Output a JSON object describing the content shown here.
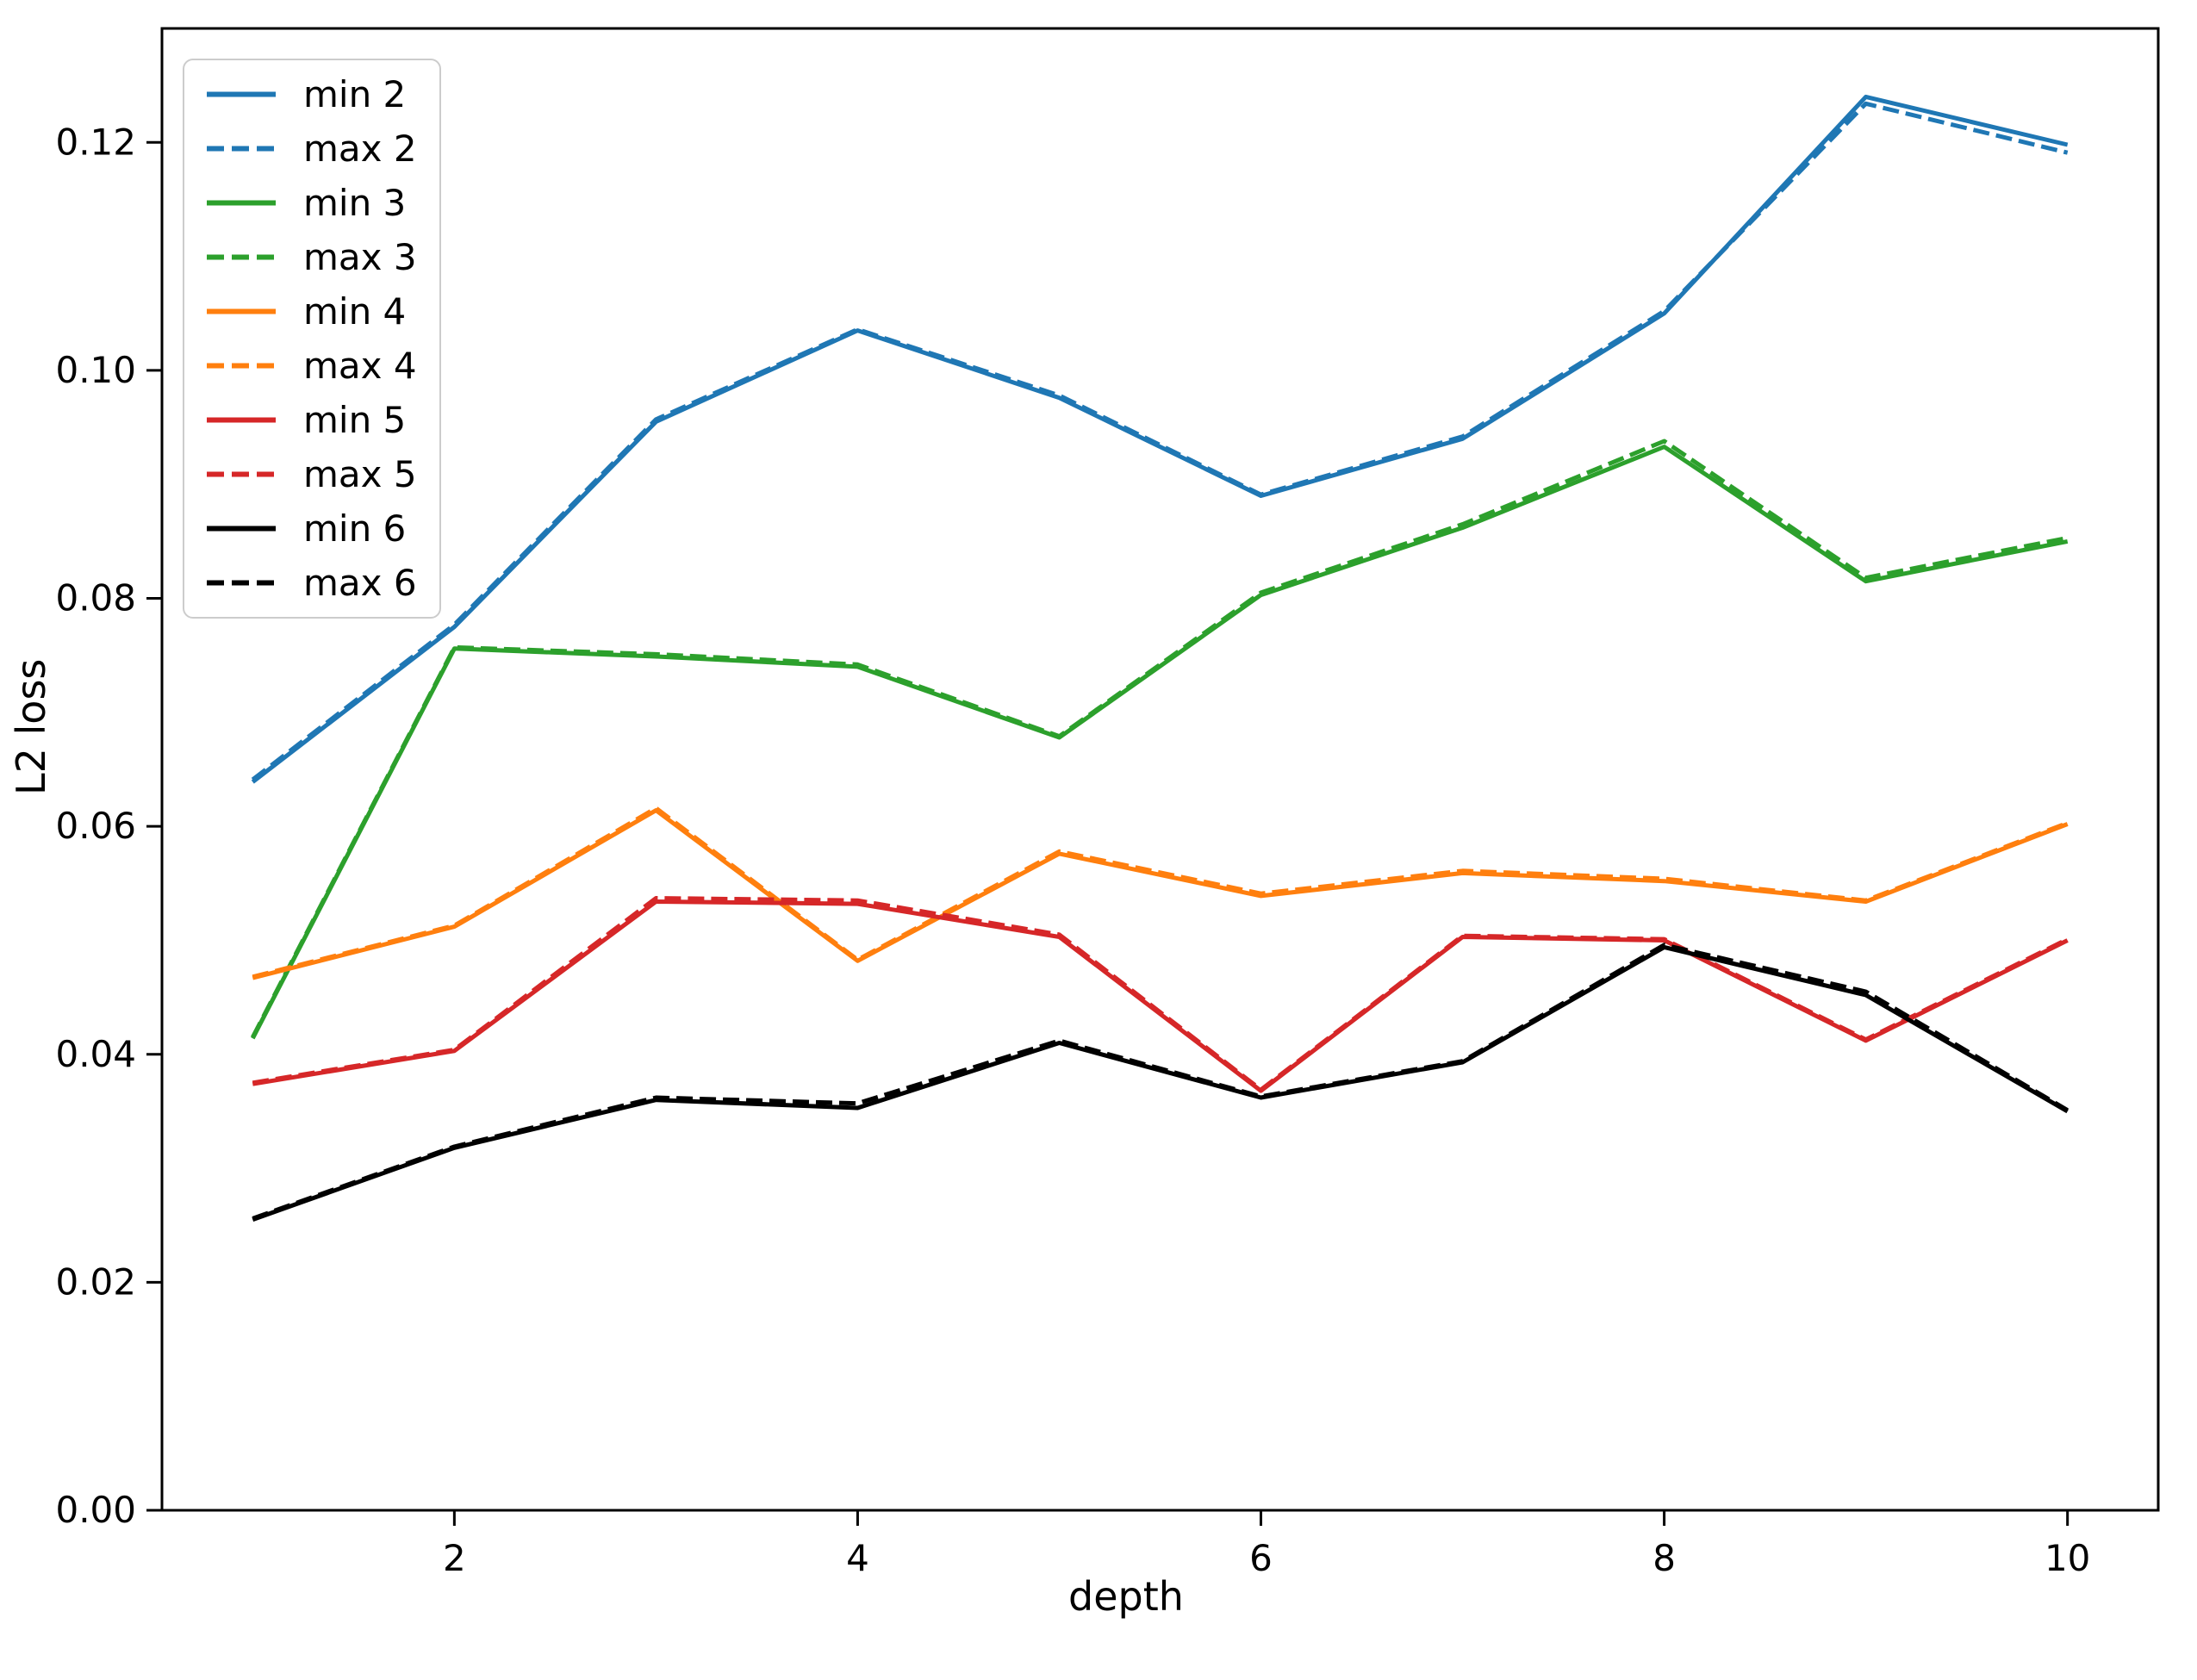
{
  "figure": {
    "background": "#ffffff",
    "xlabel": "depth",
    "ylabel": "L2 loss"
  },
  "chart_data": {
    "type": "line",
    "title": "",
    "xlabel": "depth",
    "ylabel": "L2 loss",
    "xlim": [
      0.55,
      10.45
    ],
    "ylim": [
      0.0,
      0.13
    ],
    "grid": false,
    "legend_position": "upper left",
    "x": [
      1,
      2,
      3,
      4,
      5,
      6,
      7,
      8,
      9,
      10
    ],
    "x_ticks": [
      2,
      4,
      6,
      8,
      10
    ],
    "x_tick_labels": [
      "2",
      "4",
      "6",
      "8",
      "10"
    ],
    "y_ticks": [
      0.0,
      0.02,
      0.04,
      0.06,
      0.08,
      0.1,
      0.12
    ],
    "y_tick_labels": [
      "0.00",
      "0.02",
      "0.04",
      "0.06",
      "0.08",
      "0.10",
      "0.12"
    ],
    "axis_color": "#000000",
    "series": [
      {
        "name": "min 2",
        "style": "solid",
        "color": "#1f77b4",
        "values": [
          0.0639,
          0.0775,
          0.0955,
          0.1035,
          0.0976,
          0.089,
          0.094,
          0.105,
          0.124,
          0.1198
        ]
      },
      {
        "name": "max 2",
        "style": "dashed",
        "color": "#1f77b4",
        "values": [
          0.0641,
          0.0777,
          0.0957,
          0.1036,
          0.0978,
          0.0891,
          0.0942,
          0.1052,
          0.1234,
          0.1191
        ]
      },
      {
        "name": "min 3",
        "style": "solid",
        "color": "#2ca02c",
        "values": [
          0.0414,
          0.0756,
          0.0749,
          0.074,
          0.0678,
          0.0803,
          0.0862,
          0.0933,
          0.0815,
          0.085
        ]
      },
      {
        "name": "max 3",
        "style": "dashed",
        "color": "#2ca02c",
        "values": [
          0.0415,
          0.0757,
          0.0751,
          0.0742,
          0.0679,
          0.0805,
          0.0865,
          0.0938,
          0.0818,
          0.0853
        ]
      },
      {
        "name": "min 4",
        "style": "solid",
        "color": "#ff7f0e",
        "values": [
          0.0467,
          0.0512,
          0.0614,
          0.0482,
          0.0576,
          0.0539,
          0.0559,
          0.0552,
          0.0534,
          0.0602
        ]
      },
      {
        "name": "max 4",
        "style": "dashed",
        "color": "#ff7f0e",
        "values": [
          0.0468,
          0.0513,
          0.0616,
          0.0483,
          0.0578,
          0.0541,
          0.0561,
          0.0554,
          0.0535,
          0.0603
        ]
      },
      {
        "name": "min 5",
        "style": "solid",
        "color": "#d62728",
        "values": [
          0.0374,
          0.0403,
          0.0534,
          0.0532,
          0.0503,
          0.0368,
          0.0503,
          0.05,
          0.0412,
          0.05
        ]
      },
      {
        "name": "max 5",
        "style": "dashed",
        "color": "#d62728",
        "values": [
          0.0375,
          0.0404,
          0.0537,
          0.0535,
          0.0505,
          0.0369,
          0.0504,
          0.0501,
          0.0413,
          0.0501
        ]
      },
      {
        "name": "min 6",
        "style": "solid",
        "color": "#000000",
        "values": [
          0.0255,
          0.0318,
          0.036,
          0.0353,
          0.041,
          0.0362,
          0.0393,
          0.0494,
          0.0452,
          0.035
        ]
      },
      {
        "name": "max 6",
        "style": "dashed",
        "color": "#000000",
        "values": [
          0.0256,
          0.0319,
          0.0362,
          0.0357,
          0.0412,
          0.0363,
          0.0394,
          0.0496,
          0.0455,
          0.0351
        ]
      }
    ]
  }
}
